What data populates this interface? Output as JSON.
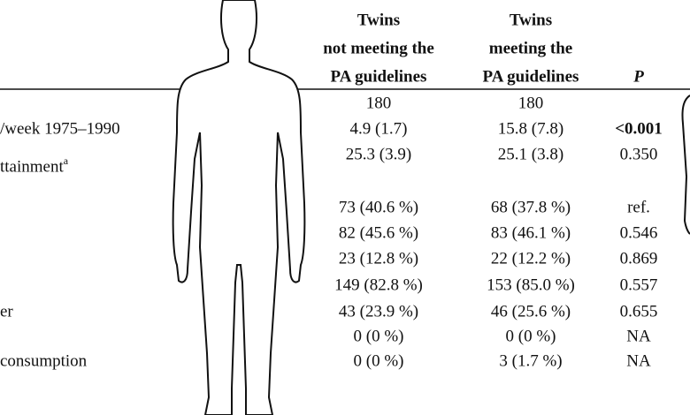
{
  "table": {
    "columns": [
      {
        "lines": [
          "Twins",
          "not meeting the",
          "PA guidelines"
        ]
      },
      {
        "lines": [
          "Twins",
          "meeting the",
          "PA guidelines"
        ]
      },
      {
        "lines": [
          "P"
        ]
      }
    ],
    "rows": [
      {
        "cells": [
          "180",
          "180"
        ]
      },
      {
        "label": "/week 1975–1990",
        "cells": [
          "4.9 (1.7)",
          "15.8 (7.8)",
          "<0.001"
        ],
        "emphasis": true
      },
      {
        "cells": [
          "25.3 (3.9)",
          "25.1 (3.8)",
          "0.350"
        ]
      },
      {
        "label": "ttainment",
        "note": "a"
      },
      {
        "cells": [
          "73 (40.6 %)",
          "68 (37.8 %)",
          "ref."
        ]
      },
      {
        "cells": [
          "82 (45.6 %)",
          "83 (46.1 %)",
          "0.546"
        ]
      },
      {
        "cells": [
          "23 (12.8 %)",
          "22 (12.2 %)",
          "0.869"
        ]
      },
      {
        "cells": [
          "149 (82.8 %)",
          "153 (85.0 %)",
          "0.557"
        ]
      },
      {
        "label": "er",
        "cells": [
          "43 (23.9 %)",
          "46 (25.6 %)",
          "0.655"
        ]
      },
      {
        "cells": [
          "0 (0 %)",
          "0 (0 %)",
          "NA"
        ]
      },
      {
        "label": "consumption",
        "cells": [
          "0 (0 %)",
          "3 (1.7 %)",
          "NA"
        ]
      }
    ]
  }
}
